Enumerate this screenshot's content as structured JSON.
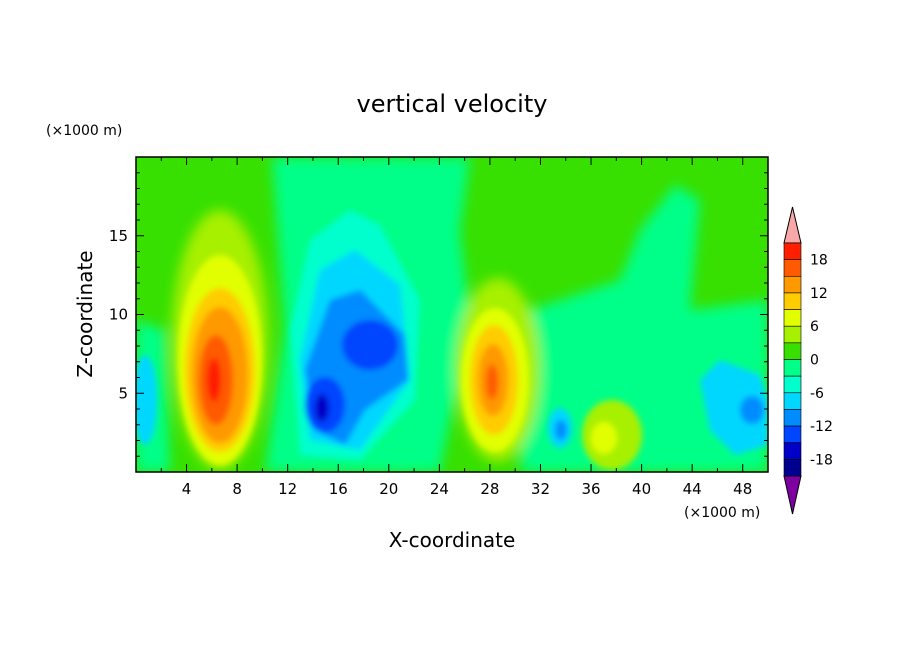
{
  "chart_data": {
    "type": "heatmap",
    "title": "vertical velocity",
    "xlabel": "X-coordinate",
    "ylabel": "Z-coordinate",
    "x_unit": "(×1000 m)",
    "y_unit": "(×1000 m)",
    "xlim": [
      0,
      50
    ],
    "ylim": [
      0,
      20
    ],
    "x_ticks": [
      4,
      8,
      12,
      16,
      20,
      24,
      28,
      32,
      36,
      40,
      44,
      48
    ],
    "y_ticks": [
      5,
      10,
      15
    ],
    "colorbar": {
      "ticks": [
        18,
        12,
        6,
        0,
        -6,
        -12,
        -18
      ],
      "levels": [
        -21,
        -18,
        -15,
        -12,
        -9,
        -6,
        -3,
        0,
        3,
        6,
        9,
        12,
        15,
        18,
        21
      ],
      "colors": [
        "#7f00a0",
        "#3f008f",
        "#00008f",
        "#0000c8",
        "#0045ff",
        "#008cff",
        "#00d7ff",
        "#00ffcc",
        "#00ff88",
        "#37e000",
        "#a7f000",
        "#e1ff00",
        "#ffcc00",
        "#ff9900",
        "#ff5a00",
        "#ff1e00",
        "#f8a8a8"
      ]
    },
    "features": [
      {
        "kind": "updraft",
        "x": 6.5,
        "z": 6.5,
        "peak": 18
      },
      {
        "kind": "downdraft",
        "x": 15,
        "z": 4.5,
        "peak": -15
      },
      {
        "kind": "downdraft",
        "x": 19,
        "z": 7.5,
        "peak": -12
      },
      {
        "kind": "updraft",
        "x": 28.5,
        "z": 6,
        "peak": 15
      },
      {
        "kind": "downdraft",
        "x": 33.5,
        "z": 3,
        "peak": -9
      },
      {
        "kind": "updraft",
        "x": 37,
        "z": 3,
        "peak": 6
      },
      {
        "kind": "downdraft",
        "x": 48.5,
        "z": 4,
        "peak": -9
      }
    ]
  }
}
